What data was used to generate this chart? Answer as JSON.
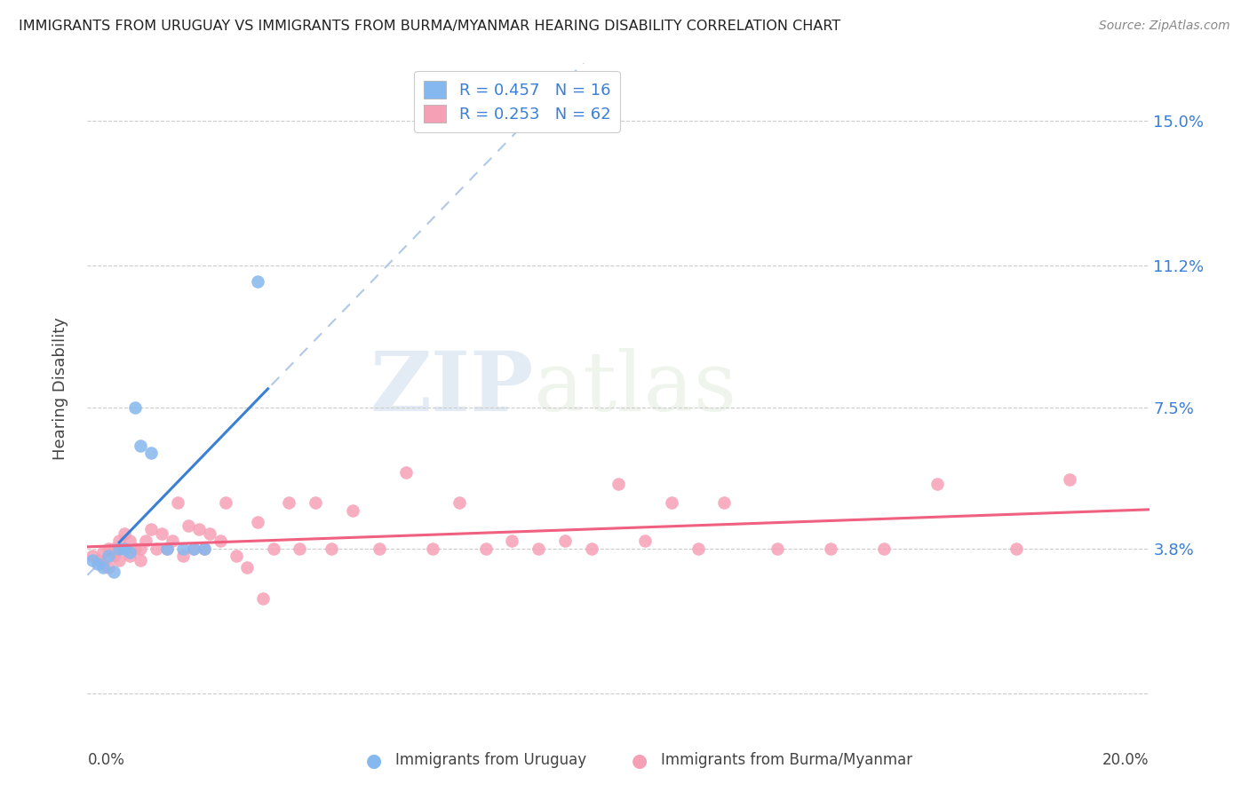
{
  "title": "IMMIGRANTS FROM URUGUAY VS IMMIGRANTS FROM BURMA/MYANMAR HEARING DISABILITY CORRELATION CHART",
  "source": "Source: ZipAtlas.com",
  "ylabel": "Hearing Disability",
  "yticks": [
    0.0,
    0.038,
    0.075,
    0.112,
    0.15
  ],
  "ytick_labels": [
    "",
    "3.8%",
    "7.5%",
    "11.2%",
    "15.0%"
  ],
  "xlim": [
    0.0,
    0.2
  ],
  "ylim": [
    -0.005,
    0.165
  ],
  "uruguay_color": "#85b8ee",
  "burma_color": "#f5a0b5",
  "uruguay_line_color": "#3a80d5",
  "burma_line_color": "#f06080",
  "dash_color": "#b0c8e8",
  "R_uruguay": 0.457,
  "N_uruguay": 16,
  "R_burma": 0.253,
  "N_burma": 62,
  "legend_label_uruguay": "R = 0.457   N = 16",
  "legend_label_burma": "R = 0.253   N = 62",
  "bottom_label_uruguay": "Immigrants from Uruguay",
  "bottom_label_burma": "Immigrants from Burma/Myanmar",
  "watermark_zip": "ZIP",
  "watermark_atlas": "atlas",
  "uruguay_x": [
    0.001,
    0.002,
    0.003,
    0.004,
    0.005,
    0.006,
    0.007,
    0.008,
    0.009,
    0.01,
    0.012,
    0.015,
    0.018,
    0.02,
    0.022,
    0.032
  ],
  "uruguay_y": [
    0.035,
    0.034,
    0.033,
    0.036,
    0.032,
    0.038,
    0.038,
    0.037,
    0.075,
    0.065,
    0.063,
    0.038,
    0.038,
    0.038,
    0.038,
    0.108
  ],
  "burma_x": [
    0.001,
    0.002,
    0.003,
    0.003,
    0.004,
    0.004,
    0.005,
    0.005,
    0.006,
    0.006,
    0.007,
    0.007,
    0.008,
    0.008,
    0.009,
    0.01,
    0.01,
    0.011,
    0.012,
    0.013,
    0.014,
    0.015,
    0.016,
    0.017,
    0.018,
    0.019,
    0.02,
    0.021,
    0.022,
    0.023,
    0.025,
    0.026,
    0.028,
    0.03,
    0.032,
    0.033,
    0.035,
    0.038,
    0.04,
    0.043,
    0.046,
    0.05,
    0.055,
    0.06,
    0.065,
    0.07,
    0.075,
    0.08,
    0.085,
    0.09,
    0.095,
    0.1,
    0.105,
    0.11,
    0.115,
    0.12,
    0.13,
    0.14,
    0.15,
    0.16,
    0.175,
    0.185
  ],
  "burma_y": [
    0.036,
    0.035,
    0.037,
    0.034,
    0.038,
    0.033,
    0.038,
    0.036,
    0.04,
    0.035,
    0.042,
    0.038,
    0.04,
    0.036,
    0.038,
    0.038,
    0.035,
    0.04,
    0.043,
    0.038,
    0.042,
    0.038,
    0.04,
    0.05,
    0.036,
    0.044,
    0.038,
    0.043,
    0.038,
    0.042,
    0.04,
    0.05,
    0.036,
    0.033,
    0.045,
    0.025,
    0.038,
    0.05,
    0.038,
    0.05,
    0.038,
    0.048,
    0.038,
    0.058,
    0.038,
    0.05,
    0.038,
    0.04,
    0.038,
    0.04,
    0.038,
    0.055,
    0.04,
    0.05,
    0.038,
    0.05,
    0.038,
    0.038,
    0.038,
    0.055,
    0.038,
    0.056
  ]
}
